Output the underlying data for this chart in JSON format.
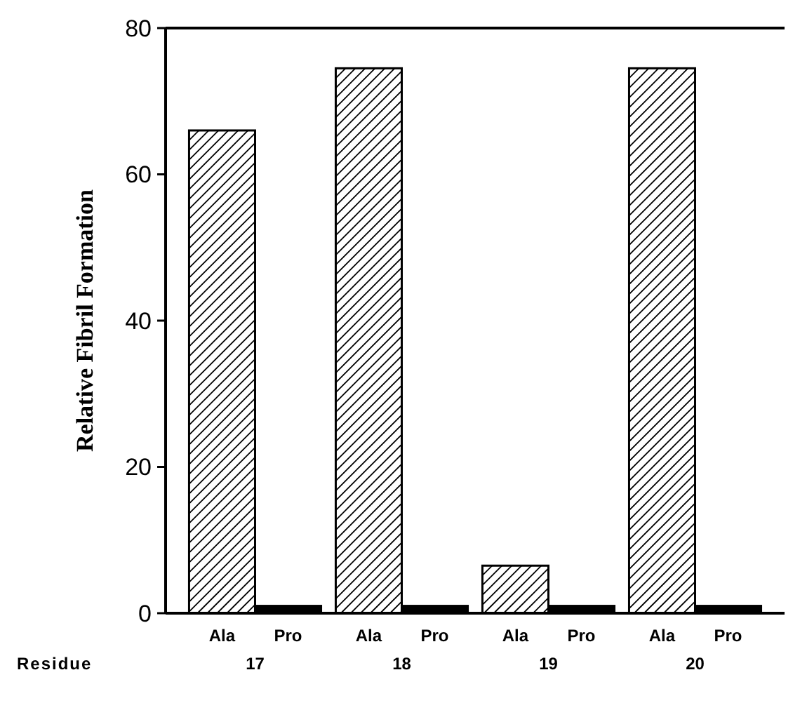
{
  "chart_data": {
    "type": "bar",
    "xlabel": "Residue",
    "ylabel": "Relative Fibril Formation",
    "categories": [
      "17",
      "18",
      "19",
      "20"
    ],
    "series": [
      {
        "name": "Ala",
        "color": "#ffffff",
        "values": [
          66,
          74.5,
          6.5,
          74.5
        ]
      },
      {
        "name": "Pro",
        "color": "#000000",
        "values": [
          1,
          1,
          1,
          1
        ]
      }
    ],
    "ylim": [
      0,
      80
    ],
    "yticks": [
      0,
      20,
      40,
      60,
      80
    ],
    "grid": false
  }
}
